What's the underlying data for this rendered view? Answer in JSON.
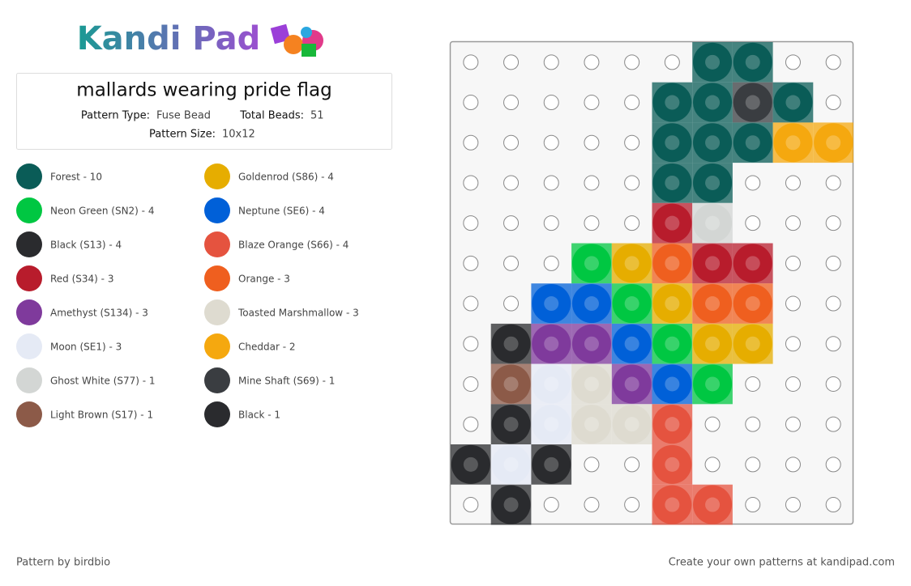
{
  "header": {
    "logo": "Kandi Pad",
    "title": "mallards wearing pride flag",
    "fields": [
      {
        "label": "Pattern Type:",
        "value": "Fuse Bead"
      },
      {
        "label": "Total Beads:",
        "value": "51"
      },
      {
        "label": "Pattern Size:",
        "value": "10x12"
      }
    ]
  },
  "legend": [
    {
      "label": "Forest - 10",
      "color": "#0a5c57"
    },
    {
      "label": "Goldenrod (S86) - 4",
      "color": "#e6ad00"
    },
    {
      "label": "Neon Green (SN2) - 4",
      "color": "#00c742"
    },
    {
      "label": "Neptune (SE6) - 4",
      "color": "#0060d8"
    },
    {
      "label": "Black (S13) - 4",
      "color": "#2a2b2e"
    },
    {
      "label": "Blaze Orange (S66) - 4",
      "color": "#e5533f"
    },
    {
      "label": "Red (S34) - 3",
      "color": "#b81c2c"
    },
    {
      "label": "Orange - 3",
      "color": "#ef5f1f"
    },
    {
      "label": "Amethyst (S134) - 3",
      "color": "#7f3a9c"
    },
    {
      "label": "Toasted Marshmallow - 3",
      "color": "#dedbd0"
    },
    {
      "label": "Moon (SE1) - 3",
      "color": "#e5eaf5"
    },
    {
      "label": "Cheddar - 2",
      "color": "#f5a80f"
    },
    {
      "label": "Ghost White (S77) - 1",
      "color": "#d3d6d4"
    },
    {
      "label": "Mine Shaft (S69) - 1",
      "color": "#3a3d41"
    },
    {
      "label": "Light Brown (S17) - 1",
      "color": "#8c5a48"
    },
    {
      "label": "Black - 1",
      "color": "#2a2b2e"
    }
  ],
  "grid": [
    [
      null,
      null,
      null,
      null,
      null,
      null,
      "#0a5c57",
      "#0a5c57",
      null,
      null
    ],
    [
      null,
      null,
      null,
      null,
      null,
      "#0a5c57",
      "#0a5c57",
      "#3a3d41",
      "#0a5c57",
      null
    ],
    [
      null,
      null,
      null,
      null,
      null,
      "#0a5c57",
      "#0a5c57",
      "#0a5c57",
      "#f5a80f",
      "#f5a80f"
    ],
    [
      null,
      null,
      null,
      null,
      null,
      "#0a5c57",
      "#0a5c57",
      null,
      null,
      null
    ],
    [
      null,
      null,
      null,
      null,
      null,
      "#b81c2c",
      "#d3d6d4",
      null,
      null,
      null
    ],
    [
      null,
      null,
      null,
      "#00c742",
      "#e6ad00",
      "#ef5f1f",
      "#b81c2c",
      "#b81c2c",
      null,
      null
    ],
    [
      null,
      null,
      "#0060d8",
      "#0060d8",
      "#00c742",
      "#e6ad00",
      "#ef5f1f",
      "#ef5f1f",
      null,
      null
    ],
    [
      null,
      "#2a2b2e",
      "#7f3a9c",
      "#7f3a9c",
      "#0060d8",
      "#00c742",
      "#e6ad00",
      "#e6ad00",
      null,
      null
    ],
    [
      null,
      "#8c5a48",
      "#e5eaf5",
      "#dedbd0",
      "#7f3a9c",
      "#0060d8",
      "#00c742",
      null,
      null,
      null
    ],
    [
      null,
      "#2a2b2e",
      "#e5eaf5",
      "#dedbd0",
      "#dedbd0",
      "#e5533f",
      null,
      null,
      null,
      null
    ],
    [
      "#2a2b2e",
      "#e5eaf5",
      "#2a2b2e",
      null,
      null,
      "#e5533f",
      null,
      null,
      null,
      null
    ],
    [
      null,
      "#2a2b2e",
      null,
      null,
      null,
      "#e5533f",
      "#e5533f",
      null,
      null,
      null
    ]
  ],
  "footer": {
    "credit": "Pattern by birdbio",
    "promo": "Create your own patterns at kandipad.com"
  }
}
